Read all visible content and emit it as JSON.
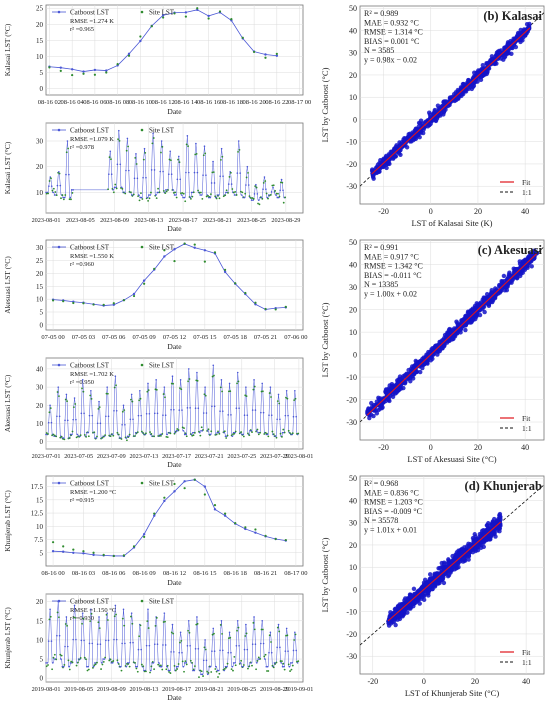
{
  "colors": {
    "catboost": "#4a57d6",
    "site": "#2e8b2e",
    "scatter": "#1414c8",
    "fit": "#e0151b",
    "oneone": "#111111",
    "grid": "#dcdcdc"
  },
  "chart_data": [
    {
      "id": "kalasai-hourly",
      "type": "line",
      "ylabel": "Kalasai LST (°C)",
      "xlabel": "Date",
      "ylim": [
        -2,
        26
      ],
      "yticks": [
        0,
        5,
        10,
        15,
        20,
        25
      ],
      "xticks": [
        "08-16 02",
        "08-16 04",
        "08-16 06",
        "08-16 08",
        "08-16 10",
        "08-16 12",
        "08-16 14",
        "08-16 16",
        "08-16 18",
        "08-16 20",
        "08-16 22",
        "08-17 00"
      ],
      "legend": [
        "Catboost LST",
        "Site LST"
      ],
      "legend_position": "top-left",
      "annotation": [
        "RMSE =1.274 K",
        "r² =0.965"
      ],
      "x": [
        2,
        3,
        4,
        5,
        6,
        7,
        8,
        9,
        10,
        11,
        12,
        13,
        14,
        15,
        16,
        17,
        18,
        19,
        20,
        21,
        22
      ],
      "series": [
        {
          "name": "Catboost LST",
          "values": [
            6.8,
            6.5,
            6.0,
            5.3,
            5.8,
            5.6,
            7.2,
            10.8,
            14.8,
            19.5,
            22.8,
            23.6,
            23.7,
            24.5,
            22.6,
            23.7,
            21.2,
            15.6,
            11.5,
            10.6,
            10.2
          ]
        },
        {
          "name": "Site LST",
          "values": [
            6.6,
            5.5,
            4.2,
            4.6,
            4.3,
            5.0,
            7.6,
            10.2,
            16.2,
            19.4,
            22.1,
            23.4,
            22.4,
            25.0,
            21.8,
            24.0,
            21.6,
            15.8,
            11.4,
            9.6,
            10.8
          ]
        }
      ]
    },
    {
      "id": "kalasai-monthly",
      "type": "line",
      "ylabel": "Kalasai LST (°C)",
      "xlabel": "Date",
      "ylim": [
        2,
        37
      ],
      "yticks": [
        10,
        20,
        30
      ],
      "xticks": [
        "2023-08-01",
        "2023-08-05",
        "2023-08-09",
        "2023-08-13",
        "2023-08-17",
        "2023-08-21",
        "2023-08-25",
        "2023-08-29"
      ],
      "x_domain": [
        0,
        30
      ],
      "legend": [
        "Catboost LST",
        "Site LST"
      ],
      "legend_position": "top-left",
      "annotation": [
        "RMSE =1.079 K",
        "r² =0.978"
      ],
      "gaps": [
        [
          3.2,
          7.2
        ]
      ],
      "peaks": [
        16,
        18,
        30,
        20,
        17,
        19,
        28,
        26,
        34,
        31,
        25,
        27,
        33,
        30,
        26,
        24,
        32,
        29,
        28,
        22,
        27,
        18,
        30,
        20,
        13,
        16,
        12,
        15
      ],
      "troughs": [
        10,
        9,
        8,
        11,
        10,
        8,
        9,
        11,
        12,
        10,
        9,
        8,
        9,
        10,
        11,
        9,
        8,
        10,
        9,
        8,
        9,
        10,
        9,
        8,
        7,
        8,
        9,
        8
      ],
      "start_day": 0.0
    },
    {
      "id": "kalasai-scatter",
      "type": "scatter",
      "label": "(b) Kalasai",
      "xlabel": "LST of Kalasai Site (K)",
      "ylabel": "LST by Catboost (°C)",
      "xlim": [
        -30,
        48
      ],
      "ylim": [
        -38,
        51
      ],
      "xticks": [
        -20,
        0,
        20,
        40
      ],
      "yticks": [
        -30,
        -20,
        -10,
        0,
        10,
        20,
        30,
        40,
        50
      ],
      "stats": [
        "R² = 0.989",
        "MAE = 0.932 °C",
        "RMSE = 1.314 °C",
        "BIAS = 0.001 °C",
        "N = 3585",
        "y = 0.98x − 0.02"
      ],
      "legend": [
        "Fit",
        "1:1"
      ],
      "legend_position": "bottom-right",
      "slope": 0.98,
      "intercept": -0.02,
      "range": [
        -25,
        42
      ],
      "spread": 2.0,
      "n_points": 650
    },
    {
      "id": "akesuasi-hourly",
      "type": "line",
      "ylabel": "Akesuasi LST (°C)",
      "xlabel": "Date",
      "ylim": [
        -2,
        33
      ],
      "yticks": [
        0,
        5,
        10,
        15,
        20,
        25,
        30
      ],
      "xticks": [
        "07-05 00",
        "07-05 03",
        "07-05 06",
        "07-05 09",
        "07-05 12",
        "07-05 15",
        "07-05 18",
        "07-05 21",
        "07-06 00"
      ],
      "legend": [
        "Catboost LST",
        "Site LST"
      ],
      "legend_position": "top-left",
      "annotation": [
        "RMSE =1.550 K",
        "r² =0.960"
      ],
      "x": [
        0,
        1,
        2,
        3,
        4,
        5,
        6,
        7,
        8,
        9,
        10,
        11,
        12,
        13,
        14,
        15,
        16,
        17,
        18,
        19,
        20,
        21,
        22,
        23
      ],
      "series": [
        {
          "name": "Catboost LST",
          "values": [
            9.8,
            9.5,
            9.0,
            8.6,
            8.0,
            7.5,
            7.8,
            9.6,
            12.0,
            17.2,
            21.5,
            26.6,
            29.4,
            31.5,
            30.0,
            29.0,
            27.8,
            20.6,
            16.0,
            12.0,
            8.0,
            6.0,
            6.5,
            6.8
          ]
        },
        {
          "name": "Site LST",
          "values": [
            9.5,
            9.2,
            8.5,
            8.4,
            7.9,
            7.8,
            8.4,
            9.6,
            11.2,
            16.0,
            21.8,
            29.0,
            24.8,
            31.6,
            31.2,
            24.6,
            28.2,
            21.4,
            16.2,
            12.4,
            8.6,
            6.2,
            6.0,
            7.0
          ]
        }
      ]
    },
    {
      "id": "akesuasi-monthly",
      "type": "line",
      "ylabel": "Akesuasi LST (°C)",
      "xlabel": "Date",
      "ylim": [
        -4,
        46
      ],
      "yticks": [
        0,
        10,
        20,
        30,
        40
      ],
      "xticks": [
        "2023-07-01",
        "2023-07-05",
        "2023-07-09",
        "2023-07-13",
        "2023-07-17",
        "2023-07-21",
        "2023-07-25",
        "2023-07-29",
        "2023-08-01"
      ],
      "x_domain": [
        0,
        31.5
      ],
      "legend": [
        "Catboost LST",
        "Site LST"
      ],
      "legend_position": "top-left",
      "annotation": [
        "RMSE =1.702 K",
        "r² =0.950"
      ],
      "gaps": [],
      "peaks": [
        20,
        30,
        26,
        24,
        34,
        28,
        22,
        30,
        36,
        20,
        26,
        28,
        32,
        34,
        30,
        36,
        34,
        40,
        38,
        30,
        42,
        34,
        32,
        38,
        30,
        34,
        32,
        30,
        26,
        28,
        28
      ],
      "troughs": [
        4,
        3,
        2,
        4,
        3,
        5,
        2,
        3,
        4,
        2,
        3,
        5,
        4,
        3,
        4,
        5,
        6,
        4,
        5,
        6,
        4,
        5,
        3,
        5,
        4,
        6,
        5,
        4,
        3,
        5,
        4
      ],
      "start_day": 0.0
    },
    {
      "id": "akesuasi-scatter",
      "type": "scatter",
      "label": "(c) Akesuasi",
      "xlabel": "LST of Akesuasi Site (°C)",
      "ylabel": "LST by Catboost (°C)",
      "xlim": [
        -30,
        48
      ],
      "ylim": [
        -38,
        51
      ],
      "xticks": [
        -20,
        0,
        20,
        40
      ],
      "yticks": [
        -30,
        -20,
        -10,
        0,
        10,
        20,
        30,
        40,
        50
      ],
      "stats": [
        "R² = 0.991",
        "MAE = 0.917 °C",
        "RMSE = 1.342 °C",
        "BIAS = -0.011 °C",
        "N = 13385",
        "y = 1.00x + 0.02"
      ],
      "legend": [
        "Fit",
        "1:1"
      ],
      "legend_position": "bottom-right",
      "slope": 1.0,
      "intercept": 0.02,
      "range": [
        -27,
        45
      ],
      "spread": 2.1,
      "n_points": 800
    },
    {
      "id": "khunjerab-hourly",
      "type": "line",
      "ylabel": "Khunjerab LST (°C)",
      "xlabel": "Date",
      "ylim": [
        2.5,
        19.5
      ],
      "yticks": [
        5.0,
        7.5,
        10.0,
        12.5,
        15.0,
        17.5
      ],
      "xticks": [
        "08-16 00",
        "08-16 03",
        "08-16 06",
        "08-16 09",
        "08-16 12",
        "08-16 15",
        "08-16 18",
        "08-16 21",
        "08-17 00"
      ],
      "legend": [
        "Catboost LST",
        "Site LST"
      ],
      "legend_position": "top-left",
      "annotation": [
        "RMSE =1.200 °C",
        "r² =0.915"
      ],
      "x": [
        0,
        1,
        2,
        3,
        4,
        5,
        6,
        7,
        8,
        9,
        10,
        11,
        12,
        13,
        14,
        15,
        16,
        17,
        18,
        19,
        20,
        21,
        22,
        23
      ],
      "series": [
        {
          "name": "Catboost LST",
          "values": [
            5.3,
            5.2,
            5.0,
            4.9,
            4.6,
            4.5,
            4.4,
            4.4,
            6.0,
            8.5,
            12.0,
            14.8,
            16.6,
            18.5,
            18.8,
            17.5,
            13.2,
            12.0,
            10.5,
            9.5,
            8.8,
            8.1,
            7.6,
            7.3
          ]
        },
        {
          "name": "Site LST",
          "values": [
            7.0,
            6.2,
            5.6,
            5.3,
            5.0,
            4.6,
            4.4,
            4.5,
            6.2,
            8.0,
            12.4,
            15.4,
            18.0,
            17.2,
            18.8,
            16.0,
            14.0,
            12.4,
            10.6,
            9.8,
            9.4,
            8.2,
            7.6,
            7.4
          ]
        }
      ]
    },
    {
      "id": "khunjerab-monthly",
      "type": "line",
      "ylabel": "Khunjerab LST (°C)",
      "xlabel": "Date",
      "ylim": [
        -1,
        22
      ],
      "yticks": [
        0,
        5,
        10,
        15,
        20
      ],
      "xticks": [
        "2019-08-01",
        "2019-08-05",
        "2019-08-09",
        "2019-08-13",
        "2019-08-17",
        "2019-08-21",
        "2019-08-25",
        "2019-08-29",
        "2019-09-01"
      ],
      "x_domain": [
        0,
        31.5
      ],
      "legend": [
        "Catboost LST",
        "Site LST"
      ],
      "legend_position": "top-left",
      "annotation": [
        "RMSE =1.150 °C",
        "r² =0.930"
      ],
      "gaps": [],
      "peaks": [
        18,
        20,
        16,
        19,
        17,
        18,
        16,
        17,
        19,
        18,
        17,
        14,
        18,
        16,
        17,
        14,
        12,
        15,
        16,
        10,
        13,
        15,
        12,
        15,
        14,
        16,
        15,
        12,
        14,
        13,
        12
      ],
      "troughs": [
        4,
        5,
        3,
        4,
        5,
        3,
        4,
        5,
        4,
        3,
        4,
        3,
        2,
        4,
        3,
        2,
        3,
        4,
        2,
        1,
        3,
        2,
        3,
        4,
        3,
        4,
        5,
        3,
        4,
        3,
        4
      ],
      "start_day": 0.0
    },
    {
      "id": "khunjerab-scatter",
      "type": "scatter",
      "label": "(d) Khunjerab",
      "xlabel": "LST of Khunjerab Site (°C)",
      "ylabel": "LST by Catboost (°C)",
      "xlim": [
        -25,
        47
      ],
      "ylim": [
        -38,
        51
      ],
      "xticks": [
        -20,
        0,
        20,
        40
      ],
      "yticks": [
        -30,
        -20,
        -10,
        0,
        10,
        20,
        30,
        40,
        50
      ],
      "stats": [
        "R² = 0.968",
        "MAE = 0.836 °C",
        "RMSE = 1.203 °C",
        "BIAS = -0.009 °C",
        "N = 35578",
        "y = 1.01x + 0.01"
      ],
      "legend": [
        "Fit",
        "1:1"
      ],
      "legend_position": "bottom-right",
      "slope": 1.01,
      "intercept": 0.01,
      "range": [
        -14,
        30
      ],
      "spread": 2.6,
      "n_points": 800
    }
  ]
}
